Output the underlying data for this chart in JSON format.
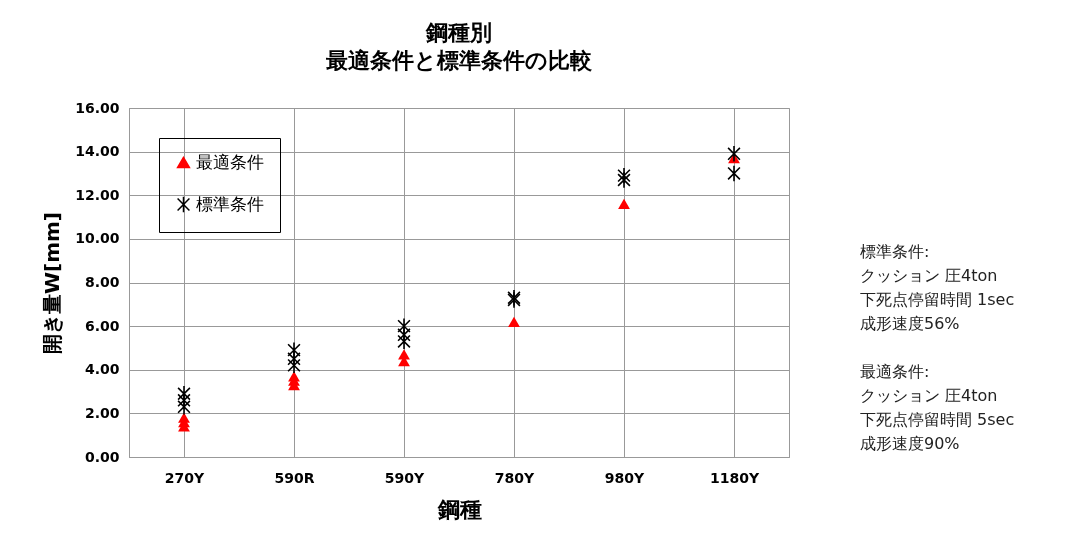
{
  "chart_data": {
    "type": "scatter",
    "title": "鋼種別",
    "subtitle": "最適条件と標準条件の比較",
    "xlabel": "鋼種",
    "ylabel": "開き量W[mm]",
    "categories": [
      "270Y",
      "590R",
      "590Y",
      "780Y",
      "980Y",
      "1180Y"
    ],
    "series": [
      {
        "name": "最適条件",
        "color": "#ff0000",
        "marker": "triangle",
        "x": [
          "270Y",
          "270Y",
          "270Y",
          "590R",
          "590R",
          "590R",
          "590Y",
          "590Y",
          "780Y",
          "980Y",
          "1180Y"
        ],
        "values": [
          1.8,
          1.6,
          1.4,
          3.7,
          3.5,
          3.3,
          4.7,
          4.4,
          6.2,
          11.6,
          13.7
        ]
      },
      {
        "name": "標準条件",
        "color": "#000000",
        "marker": "cross",
        "x": [
          "270Y",
          "270Y",
          "270Y",
          "590R",
          "590R",
          "590R",
          "590Y",
          "590Y",
          "590Y",
          "780Y",
          "780Y",
          "980Y",
          "980Y",
          "1180Y",
          "1180Y"
        ],
        "values": [
          2.9,
          2.6,
          2.3,
          4.9,
          4.5,
          4.2,
          6.0,
          5.6,
          5.3,
          7.3,
          7.2,
          12.9,
          12.7,
          13.9,
          13.0
        ]
      }
    ],
    "ylim": [
      0,
      16
    ],
    "yticks": [
      {
        "value": 0,
        "label": "0.00"
      },
      {
        "value": 2,
        "label": "2.00"
      },
      {
        "value": 4,
        "label": "4.00"
      },
      {
        "value": 6,
        "label": "6.00"
      },
      {
        "value": 8,
        "label": "8.00"
      },
      {
        "value": 10,
        "label": "10.00"
      },
      {
        "value": 12,
        "label": "12.00"
      },
      {
        "value": 14,
        "label": "14.00"
      },
      {
        "value": 16,
        "label": "16.00"
      }
    ],
    "grid": true,
    "legend": "top left",
    "annotations": [
      "標準条件:",
      "クッション 圧4ton",
      "下死点停留時間 1sec",
      "成形速度56%",
      "最適条件:",
      "クッション 圧4ton",
      "下死点停留時間 5sec",
      "成形速度90%"
    ]
  }
}
